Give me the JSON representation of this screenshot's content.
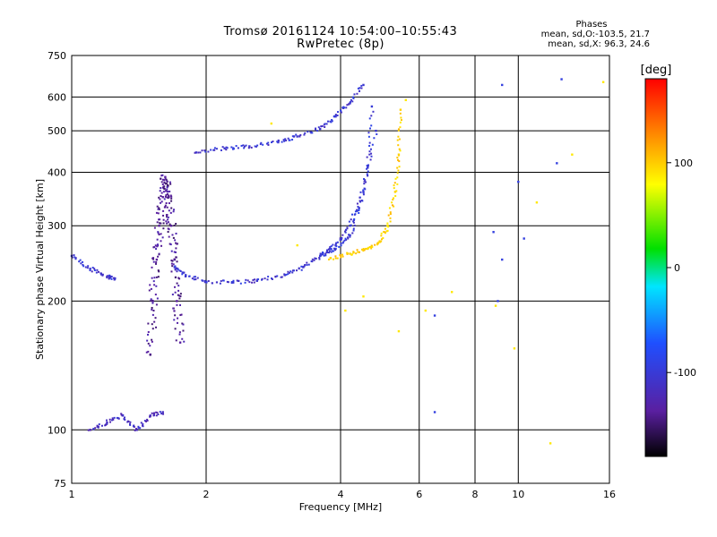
{
  "header": {
    "title_line1": "Tromsø 20161124 10:54:00–10:55:43",
    "title_line2": "RwPretec (8p)"
  },
  "phases_box": {
    "heading": "Phases",
    "line_o": "mean, sd,O:-103.5, 21.7",
    "line_x": "mean, sd,X:  96.3, 24.6"
  },
  "colors": {
    "background": "#ffffff",
    "grid": "#000000",
    "ordinary_mode": "#1f4fff",
    "extra_mode": "#ffb000",
    "low_phase": "#5a1fa0"
  },
  "chart_data": {
    "type": "scatter",
    "title": "",
    "xlabel": "Frequency [MHz]",
    "ylabel": "Stationary phase Virtual Height [km]",
    "x_scale": "log",
    "y_scale": "log",
    "xlim": [
      1,
      16
    ],
    "ylim": [
      75,
      750
    ],
    "x_ticks": [
      1,
      2,
      4,
      6,
      8,
      10,
      16
    ],
    "x_tick_labels": [
      "1",
      "2",
      "4",
      "6",
      "8",
      "10",
      "16"
    ],
    "y_ticks": [
      75,
      100,
      200,
      300,
      400,
      500,
      600,
      750
    ],
    "y_tick_labels": [
      "75",
      "100",
      "200",
      "300",
      "400",
      "500",
      "600",
      "750"
    ],
    "grid": true,
    "colorbar": {
      "label": "[deg]",
      "ticks": [
        100,
        0,
        -100
      ],
      "tick_labels": [
        "100",
        "0",
        "-100"
      ],
      "range": [
        -180,
        180
      ],
      "colormap": "rainbow"
    },
    "series": [
      {
        "trace": "lowphase-E",
        "phase": -140,
        "x": [
          1.5,
          1.52,
          1.55,
          1.57,
          1.6,
          1.62,
          1.65,
          1.67,
          1.7,
          1.72,
          1.75
        ],
        "y": [
          150,
          200,
          250,
          300,
          350,
          390,
          350,
          300,
          250,
          200,
          160
        ]
      },
      {
        "trace": "o-low-layer",
        "phase": -110,
        "x": [
          1.0,
          1.1,
          1.2,
          1.25
        ],
        "y": [
          255,
          238,
          228,
          226
        ]
      },
      {
        "trace": "lowphase-bottom",
        "phase": -120,
        "x": [
          1.1,
          1.2,
          1.3,
          1.4,
          1.5,
          1.6
        ],
        "y": [
          100,
          104,
          108,
          100,
          108,
          110
        ]
      },
      {
        "trace": "o-F-trace",
        "phase": -110,
        "x": [
          1.7,
          1.8,
          2.0,
          2.3,
          2.6,
          3.0,
          3.3,
          3.6,
          3.9,
          4.2,
          4.5,
          4.8
        ],
        "y": [
          240,
          230,
          222,
          221,
          223,
          230,
          240,
          255,
          270,
          300,
          360,
          500
        ]
      },
      {
        "trace": "o-upper-trace",
        "phase": -110,
        "x": [
          1.9,
          2.2,
          2.5,
          2.9,
          3.2,
          3.6,
          3.9,
          4.2,
          4.5
        ],
        "y": [
          445,
          455,
          460,
          470,
          485,
          505,
          540,
          580,
          640
        ]
      },
      {
        "trace": "o-mid-trace",
        "phase": -105,
        "x": [
          3.6,
          3.9,
          4.2,
          4.4,
          4.6,
          4.7
        ],
        "y": [
          255,
          265,
          285,
          330,
          410,
          570
        ]
      },
      {
        "trace": "x-trace",
        "phase": 100,
        "x": [
          3.8,
          4.2,
          4.6,
          4.9,
          5.1,
          5.3,
          5.4,
          5.45
        ],
        "y": [
          252,
          258,
          265,
          275,
          300,
          360,
          440,
          560
        ]
      },
      {
        "trace": "scattered-high",
        "phase": -100,
        "x": [
          6.5,
          6.5,
          8.8,
          9.2,
          9.0,
          9.2,
          12.5,
          12.2,
          10.0,
          10.3
        ],
        "y": [
          185,
          110,
          290,
          250,
          200,
          640,
          660,
          420,
          380,
          280
        ]
      },
      {
        "trace": "scattered-extra",
        "phase": 90,
        "x": [
          2.8,
          3.2,
          4.1,
          4.5,
          5.4,
          5.6,
          6.2,
          7.1,
          8.9,
          9.8,
          11.0,
          11.8,
          13.2,
          15.5
        ],
        "y": [
          520,
          270,
          190,
          205,
          170,
          590,
          190,
          210,
          195,
          155,
          340,
          93,
          440,
          650
        ]
      }
    ]
  }
}
